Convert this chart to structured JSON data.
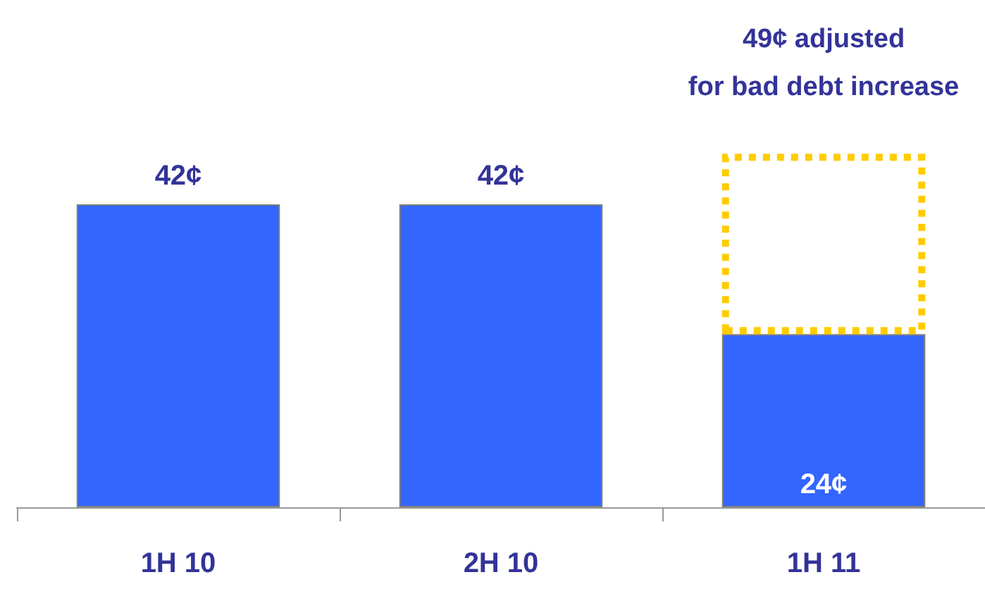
{
  "chart_data": {
    "type": "bar",
    "stacked": true,
    "categories": [
      "1H 10",
      "2H 10",
      "1H 11"
    ],
    "tick_labels": "x",
    "series": [
      {
        "color": "#3366ff",
        "values": [
          42,
          42,
          24
        ],
        "value_labels": [
          "42¢",
          "42¢",
          "24¢"
        ]
      },
      {
        "color": "#ffcc00",
        "values": [
          null,
          null,
          25
        ],
        "line_style": "dotted"
      }
    ],
    "annotations": [
      "49¢ adjusted\nfor bad debt increase"
    ]
  }
}
